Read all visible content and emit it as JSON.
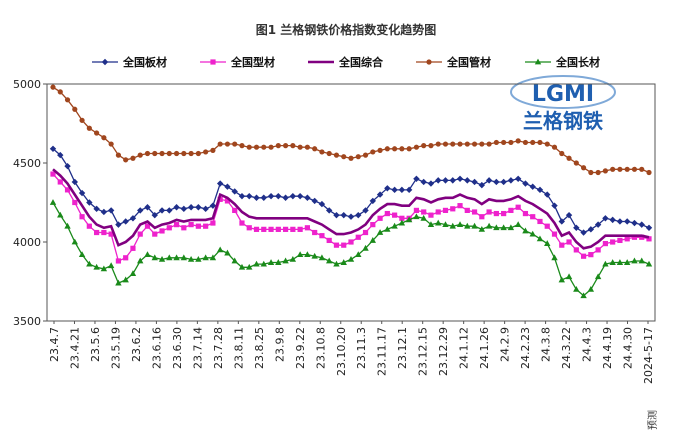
{
  "chart_data": {
    "type": "line",
    "title": "图1 兰格钢铁价格指数变化趋势图",
    "xlabel": "",
    "ylabel": "",
    "ylim": [
      3500,
      5000
    ],
    "yticks": [
      "3500",
      "4000",
      "4500",
      "5000"
    ],
    "grid": false,
    "legend_position": "top",
    "x_tick_labels": [
      "23.4.7",
      "23.4.21",
      "23.5.6",
      "23.5.19",
      "23.6.2",
      "23.6.16",
      "23.6.30",
      "23.7.14",
      "23.7.28",
      "23.8.11",
      "23.8.25",
      "23.9.8",
      "23.9.22",
      "23.10.8",
      "23.10.20",
      "23.11.3",
      "23.11.17",
      "23.12.1",
      "23.12.15",
      "23.12.29",
      "24.1.12",
      "24.1.26",
      "24.2.9",
      "24.2.23",
      "24.3.8",
      "24.3.22",
      "24.4.3",
      "24.4.19",
      "24.4.30",
      "2024-5-17"
    ],
    "series": [
      {
        "name": "全国板材",
        "color": "#1f2f8a",
        "marker": "diamond",
        "values": [
          4590,
          4550,
          4480,
          4380,
          4310,
          4250,
          4210,
          4190,
          4200,
          4110,
          4130,
          4150,
          4200,
          4220,
          4170,
          4200,
          4200,
          4220,
          4210,
          4220,
          4220,
          4210,
          4230,
          4370,
          4350,
          4320,
          4290,
          4290,
          4280,
          4280,
          4290,
          4290,
          4280,
          4290,
          4290,
          4280,
          4260,
          4240,
          4200,
          4170,
          4170,
          4160,
          4170,
          4200,
          4260,
          4300,
          4340,
          4330,
          4330,
          4330,
          4400,
          4380,
          4370,
          4390,
          4390,
          4390,
          4400,
          4390,
          4380,
          4360,
          4390,
          4380,
          4380,
          4390,
          4400,
          4370,
          4350,
          4330,
          4300,
          4230,
          4130,
          4170,
          4090,
          4060,
          4080,
          4110,
          4150,
          4140,
          4130,
          4130,
          4120,
          4110,
          4090
        ]
      },
      {
        "name": "全国型材",
        "color": "#ee22cc",
        "marker": "square",
        "values": [
          4430,
          4380,
          4330,
          4250,
          4160,
          4100,
          4060,
          4060,
          4050,
          3880,
          3900,
          3960,
          4050,
          4100,
          4050,
          4070,
          4090,
          4110,
          4090,
          4110,
          4100,
          4100,
          4120,
          4270,
          4260,
          4200,
          4120,
          4090,
          4080,
          4080,
          4080,
          4080,
          4080,
          4080,
          4080,
          4090,
          4060,
          4040,
          4010,
          3980,
          3980,
          4000,
          4030,
          4060,
          4110,
          4150,
          4180,
          4170,
          4150,
          4150,
          4200,
          4190,
          4170,
          4190,
          4200,
          4210,
          4230,
          4200,
          4190,
          4160,
          4190,
          4180,
          4180,
          4200,
          4220,
          4180,
          4160,
          4130,
          4100,
          4050,
          3980,
          4000,
          3950,
          3910,
          3920,
          3950,
          3990,
          4000,
          4010,
          4020,
          4030,
          4030,
          4020
        ]
      },
      {
        "name": "全国综合",
        "color": "#800080",
        "marker": "none",
        "values": [
          4460,
          4420,
          4370,
          4300,
          4230,
          4160,
          4110,
          4090,
          4100,
          3980,
          4000,
          4040,
          4110,
          4130,
          4090,
          4110,
          4120,
          4140,
          4130,
          4140,
          4140,
          4140,
          4150,
          4300,
          4280,
          4240,
          4190,
          4160,
          4150,
          4150,
          4150,
          4150,
          4150,
          4150,
          4150,
          4150,
          4130,
          4110,
          4080,
          4050,
          4050,
          4060,
          4080,
          4110,
          4170,
          4210,
          4240,
          4240,
          4230,
          4230,
          4280,
          4270,
          4250,
          4270,
          4280,
          4280,
          4300,
          4280,
          4270,
          4240,
          4270,
          4260,
          4260,
          4270,
          4290,
          4260,
          4240,
          4210,
          4180,
          4120,
          4040,
          4060,
          4000,
          3960,
          3970,
          4000,
          4040,
          4040,
          4040,
          4040,
          4040,
          4040,
          4030
        ]
      },
      {
        "name": "全国管材",
        "color": "#a0461e",
        "marker": "circle",
        "values": [
          4980,
          4950,
          4900,
          4840,
          4770,
          4720,
          4690,
          4660,
          4620,
          4550,
          4520,
          4530,
          4550,
          4560,
          4560,
          4560,
          4560,
          4560,
          4560,
          4560,
          4560,
          4570,
          4580,
          4620,
          4620,
          4620,
          4610,
          4600,
          4600,
          4600,
          4600,
          4610,
          4610,
          4610,
          4600,
          4600,
          4590,
          4570,
          4560,
          4550,
          4540,
          4530,
          4540,
          4550,
          4570,
          4580,
          4590,
          4590,
          4590,
          4590,
          4600,
          4610,
          4610,
          4620,
          4620,
          4620,
          4620,
          4620,
          4620,
          4620,
          4620,
          4630,
          4630,
          4630,
          4640,
          4630,
          4630,
          4630,
          4620,
          4600,
          4560,
          4530,
          4500,
          4470,
          4440,
          4440,
          4450,
          4460,
          4460,
          4460,
          4460,
          4460,
          4440
        ]
      },
      {
        "name": "全国长材",
        "color": "#1a8a1a",
        "marker": "triangle",
        "values": [
          4250,
          4170,
          4100,
          4000,
          3920,
          3860,
          3840,
          3830,
          3850,
          3740,
          3760,
          3800,
          3880,
          3920,
          3900,
          3890,
          3900,
          3900,
          3900,
          3890,
          3890,
          3900,
          3900,
          3950,
          3930,
          3880,
          3840,
          3840,
          3860,
          3860,
          3870,
          3870,
          3880,
          3890,
          3920,
          3920,
          3910,
          3900,
          3880,
          3860,
          3870,
          3890,
          3920,
          3960,
          4010,
          4060,
          4080,
          4100,
          4120,
          4140,
          4160,
          4150,
          4110,
          4120,
          4110,
          4100,
          4110,
          4100,
          4100,
          4080,
          4100,
          4090,
          4090,
          4090,
          4110,
          4070,
          4050,
          4020,
          3990,
          3900,
          3760,
          3780,
          3700,
          3660,
          3700,
          3780,
          3860,
          3870,
          3870,
          3870,
          3880,
          3880,
          3860
        ]
      }
    ],
    "footnote": "预测"
  },
  "logo": {
    "text": "LGMI",
    "name_cn": "兰格钢铁",
    "color_primary": "#1f5fb0",
    "color_accent": "#d02020"
  }
}
